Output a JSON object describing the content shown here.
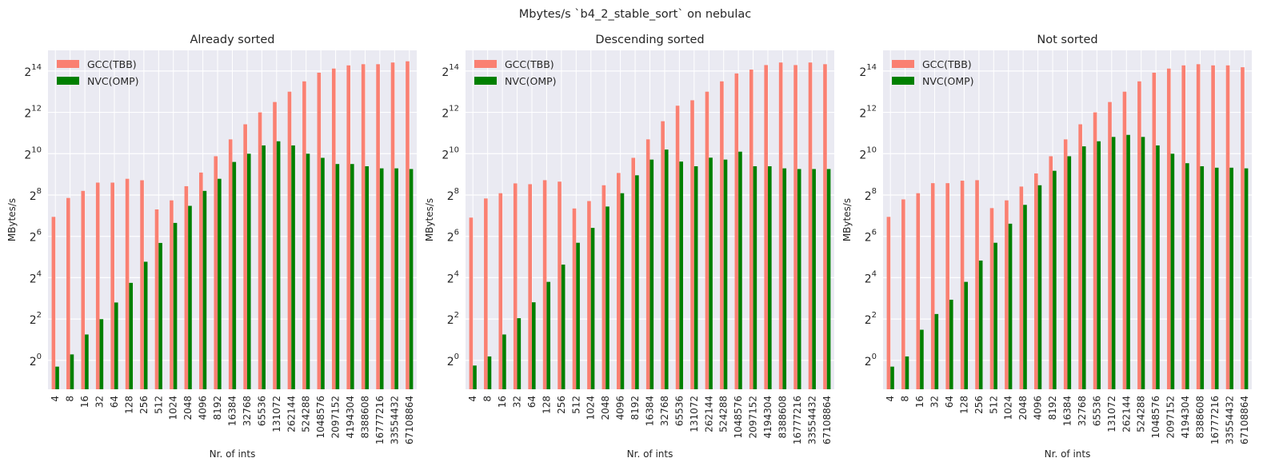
{
  "figure": {
    "suptitle": "Mbytes/s `b4_2_stable_sort` on nebulac",
    "background": "#ffffff",
    "axes_facecolor": "#eaeaf2",
    "grid_color": "#ffffff",
    "text_color": "#262626"
  },
  "chart_data": [
    {
      "type": "bar",
      "title": "Already sorted",
      "xlabel": "Nr. of ints",
      "ylabel": "MBytes/s",
      "yscale": "log2",
      "ylim_exp": [
        -1.4,
        15
      ],
      "yticks_exp": [
        0,
        2,
        4,
        6,
        8,
        10,
        12,
        14
      ],
      "grid": true,
      "legend_position": "upper-left",
      "categories": [
        "4",
        "8",
        "16",
        "32",
        "64",
        "128",
        "256",
        "512",
        "1024",
        "2048",
        "4096",
        "8192",
        "16384",
        "32768",
        "65536",
        "131072",
        "262144",
        "524288",
        "1048576",
        "2097152",
        "4194304",
        "8388608",
        "16777216",
        "33554432",
        "67108864"
      ],
      "series": [
        {
          "name": "GCC(TBB)",
          "color": "#fa8072",
          "values": [
            123,
            232,
            294,
            388,
            388,
            441,
            420,
            158,
            214,
            344,
            544,
            940,
            1655,
            2744,
            4096,
            5793,
            8192,
            11585,
            15500,
            17800,
            19800,
            20600,
            20600,
            21800,
            22700
          ]
        },
        {
          "name": "NVC(OMP)",
          "color": "#008000",
          "values": [
            0.81,
            1.22,
            2.38,
            3.98,
            6.96,
            13.45,
            27.3,
            51.3,
            100.4,
            178,
            294,
            441,
            776,
            1023,
            1351,
            1552,
            1351,
            1023,
            891,
            724,
            724,
            672,
            626,
            626,
            612
          ]
        }
      ]
    },
    {
      "type": "bar",
      "title": "Descending sorted",
      "xlabel": "Nr. of ints",
      "ylabel": "MBytes/s",
      "yscale": "log2",
      "ylim_exp": [
        -1.4,
        15
      ],
      "yticks_exp": [
        0,
        2,
        4,
        6,
        8,
        10,
        12,
        14
      ],
      "grid": true,
      "legend_position": "upper-left",
      "categories": [
        "4",
        "8",
        "16",
        "32",
        "64",
        "128",
        "256",
        "512",
        "1024",
        "2048",
        "4096",
        "8192",
        "16384",
        "32768",
        "65536",
        "131072",
        "262144",
        "524288",
        "1048576",
        "2097152",
        "4194304",
        "8388608",
        "16777216",
        "33554432",
        "67108864"
      ],
      "series": [
        {
          "name": "GCC(TBB)",
          "color": "#fa8072",
          "values": [
            120,
            228,
            272,
            378,
            368,
            421,
            401,
            163,
            209,
            355,
            536,
            891,
            1657,
            3044,
            5120,
            6144,
            8192,
            11585,
            15100,
            17200,
            20000,
            21800,
            20000,
            21800,
            20600
          ]
        },
        {
          "name": "NVC(OMP)",
          "color": "#008000",
          "values": [
            0.84,
            1.14,
            2.38,
            4.11,
            7.01,
            13.9,
            24.8,
            51.6,
            85,
            174,
            272,
            496,
            840,
            1176,
            786,
            672,
            896,
            840,
            1096,
            672,
            672,
            626,
            612,
            612,
            612
          ]
        }
      ]
    },
    {
      "type": "bar",
      "title": "Not sorted",
      "xlabel": "Nr. of ints",
      "ylabel": "MBytes/s",
      "yscale": "log2",
      "ylim_exp": [
        -1.4,
        15
      ],
      "yticks_exp": [
        0,
        2,
        4,
        6,
        8,
        10,
        12,
        14
      ],
      "grid": true,
      "legend_position": "upper-left",
      "categories": [
        "4",
        "8",
        "16",
        "32",
        "64",
        "128",
        "256",
        "512",
        "1024",
        "2048",
        "4096",
        "8192",
        "16384",
        "32768",
        "65536",
        "131072",
        "262144",
        "524288",
        "1048576",
        "2097152",
        "4194304",
        "8388608",
        "16777216",
        "33554432",
        "67108864"
      ],
      "series": [
        {
          "name": "GCC(TBB)",
          "color": "#fa8072",
          "values": [
            123,
            221,
            272,
            381,
            381,
            414,
            421,
            165,
            214,
            340,
            528,
            940,
            1655,
            2744,
            4096,
            5793,
            8192,
            11585,
            15500,
            17800,
            19800,
            20600,
            19800,
            19800,
            18600
          ]
        },
        {
          "name": "NVC(OMP)",
          "color": "#008000",
          "values": [
            0.81,
            1.14,
            2.79,
            4.73,
            7.64,
            13.9,
            28.4,
            51.6,
            97.8,
            184,
            355,
            577,
            940,
            1310,
            1552,
            1796,
            1924,
            1796,
            1351,
            1023,
            744,
            672,
            640,
            640,
            626
          ]
        }
      ]
    }
  ]
}
